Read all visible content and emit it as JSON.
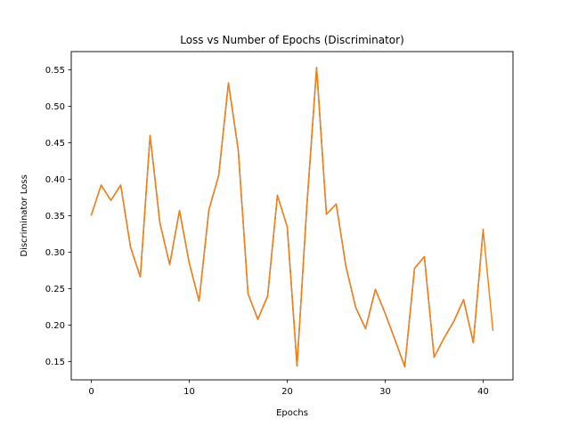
{
  "chart_data": {
    "type": "line",
    "title": "Loss vs Number of Epochs (Discriminator)",
    "xlabel": "Epochs",
    "ylabel": "Discriminator Loss",
    "xlim": [
      -2.05,
      43.05
    ],
    "ylim": [
      0.125,
      0.575
    ],
    "xticks": [
      0,
      10,
      20,
      30,
      40
    ],
    "xtick_labels": [
      "0",
      "10",
      "20",
      "30",
      "40"
    ],
    "yticks": [
      0.15,
      0.2,
      0.25,
      0.3,
      0.35,
      0.4,
      0.45,
      0.5,
      0.55
    ],
    "ytick_labels": [
      "0.15",
      "0.20",
      "0.25",
      "0.30",
      "0.35",
      "0.40",
      "0.45",
      "0.50",
      "0.55"
    ],
    "grid": false,
    "series": [
      {
        "color": "#1f77b4",
        "x": [
          0,
          1,
          2,
          3,
          4,
          5,
          6,
          7,
          8,
          9,
          10,
          11,
          12,
          13,
          14,
          15,
          16,
          17,
          18,
          19,
          20,
          21,
          22,
          23,
          24,
          25,
          26,
          27,
          28,
          29,
          30,
          31,
          32,
          33,
          34,
          35,
          36,
          37,
          38,
          39,
          40
        ],
        "values": [
          0.351,
          0.392,
          0.371,
          0.392,
          0.307,
          0.266,
          0.46,
          0.34,
          0.283,
          0.357,
          0.285,
          0.233,
          0.358,
          0.405,
          0.532,
          0.44,
          0.243,
          0.208,
          0.24,
          0.378,
          0.335,
          0.144,
          0.363,
          0.553,
          0.352,
          0.366,
          0.28,
          0.224,
          0.195,
          0.249,
          0.216,
          0.18,
          0.143,
          0.278,
          0.294,
          0.156,
          0.182,
          0.205,
          0.235,
          0.176,
          0.331
        ]
      },
      {
        "color": "#ff7f0e",
        "x": [
          0,
          1,
          2,
          3,
          4,
          5,
          6,
          7,
          8,
          9,
          10,
          11,
          12,
          13,
          14,
          15,
          16,
          17,
          18,
          19,
          20,
          21,
          22,
          23,
          24,
          25,
          26,
          27,
          28,
          29,
          30,
          31,
          32,
          33,
          34,
          35,
          36,
          37,
          38,
          39,
          40,
          41
        ],
        "values": [
          0.351,
          0.392,
          0.371,
          0.392,
          0.307,
          0.266,
          0.46,
          0.34,
          0.283,
          0.357,
          0.285,
          0.233,
          0.358,
          0.405,
          0.532,
          0.44,
          0.243,
          0.208,
          0.24,
          0.378,
          0.335,
          0.144,
          0.363,
          0.553,
          0.352,
          0.366,
          0.28,
          0.224,
          0.195,
          0.249,
          0.216,
          0.18,
          0.143,
          0.278,
          0.294,
          0.156,
          0.182,
          0.205,
          0.235,
          0.176,
          0.331,
          0.193
        ]
      }
    ]
  }
}
